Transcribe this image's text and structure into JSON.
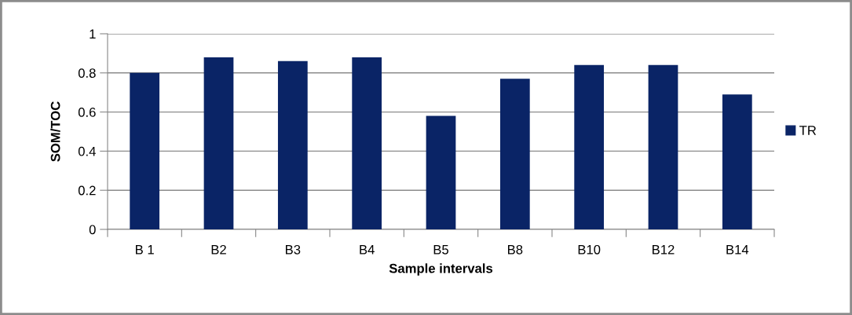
{
  "chart_data": {
    "type": "bar",
    "xlabel": "Sample intervals",
    "ylabel": "SOM/TOC",
    "categories": [
      "B 1",
      "B2",
      "B3",
      "B4",
      "B5",
      "B8",
      "B10",
      "B12",
      "B14"
    ],
    "series": [
      {
        "name": "TR",
        "color": "#0a2466",
        "values": [
          0.8,
          0.88,
          0.86,
          0.88,
          0.58,
          0.77,
          0.84,
          0.84,
          0.69
        ]
      }
    ],
    "ylim": [
      0,
      1
    ],
    "yticks": [
      0,
      0.2,
      0.4,
      0.6,
      0.8,
      1
    ],
    "grid": "y",
    "legend": "right"
  }
}
